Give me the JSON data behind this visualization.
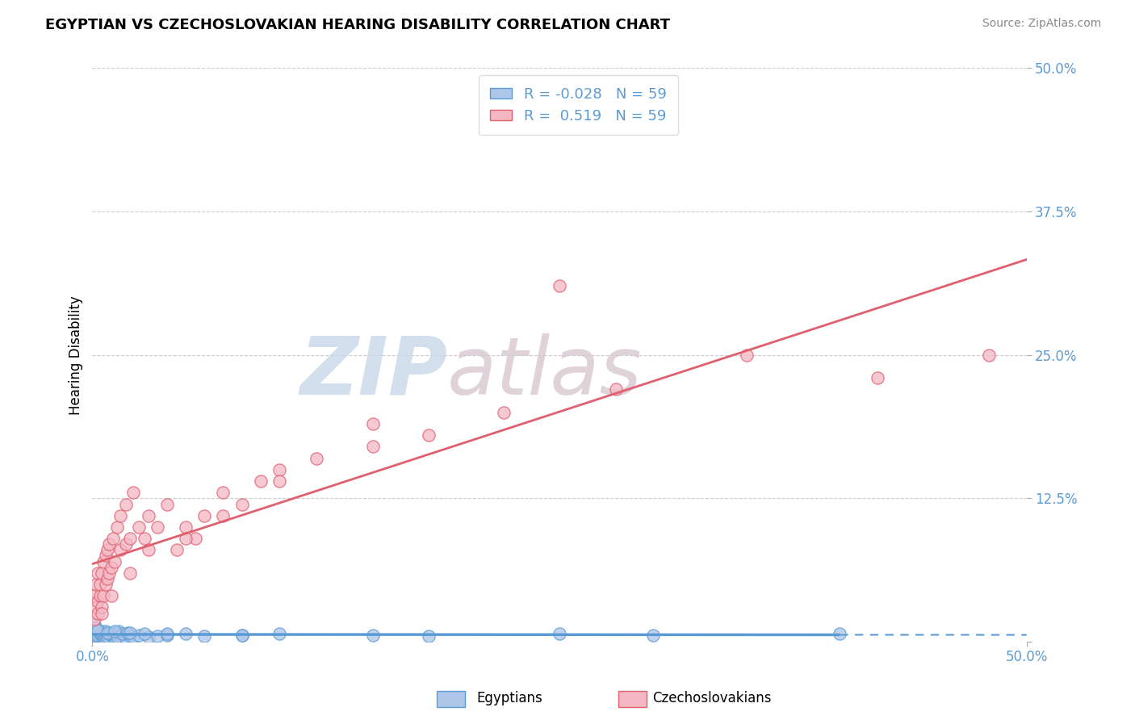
{
  "title": "EGYPTIAN VS CZECHOSLOVAKIAN HEARING DISABILITY CORRELATION CHART",
  "source": "Source: ZipAtlas.com",
  "ylabel": "Hearing Disability",
  "legend_label_egyptian": "Egyptians",
  "legend_label_czech": "Czechoslovakians",
  "R_egyptian": -0.028,
  "N_egyptian": 59,
  "R_czech": 0.519,
  "N_czech": 59,
  "xlim": [
    0.0,
    0.5
  ],
  "ylim": [
    0.0,
    0.5
  ],
  "ytick_vals": [
    0.0,
    0.125,
    0.25,
    0.375,
    0.5
  ],
  "ytick_labels": [
    "",
    "12.5%",
    "25.0%",
    "37.5%",
    "50.0%"
  ],
  "xtick_vals": [
    0.0,
    0.5
  ],
  "xtick_labels": [
    "0.0%",
    "50.0%"
  ],
  "color_egyptian_fill": "#aec6e8",
  "color_czech_fill": "#f4b8c4",
  "color_egyptian_edge": "#5b9bd5",
  "color_czech_edge": "#e06070",
  "color_blue": "#5b9bd5",
  "color_pink": "#e87088",
  "background_color": "#ffffff",
  "grid_color": "#cccccc",
  "watermark_zip": "ZIP",
  "watermark_atlas": "atlas",
  "title_fontsize": 13,
  "label_fontsize": 12,
  "legend_fontsize": 13,
  "eg_x": [
    0.001,
    0.002,
    0.001,
    0.003,
    0.002,
    0.004,
    0.003,
    0.001,
    0.002,
    0.005,
    0.004,
    0.003,
    0.006,
    0.005,
    0.007,
    0.004,
    0.006,
    0.008,
    0.003,
    0.007,
    0.005,
    0.009,
    0.006,
    0.008,
    0.01,
    0.007,
    0.012,
    0.009,
    0.015,
    0.011,
    0.013,
    0.018,
    0.014,
    0.02,
    0.016,
    0.022,
    0.019,
    0.025,
    0.03,
    0.028,
    0.035,
    0.04,
    0.05,
    0.06,
    0.08,
    0.1,
    0.15,
    0.18,
    0.25,
    0.3,
    0.001,
    0.002,
    0.003,
    0.008,
    0.012,
    0.02,
    0.04,
    0.08,
    0.4
  ],
  "eg_y": [
    0.005,
    0.003,
    0.008,
    0.004,
    0.006,
    0.003,
    0.007,
    0.01,
    0.005,
    0.004,
    0.008,
    0.006,
    0.003,
    0.009,
    0.005,
    0.007,
    0.004,
    0.006,
    0.01,
    0.003,
    0.007,
    0.005,
    0.008,
    0.004,
    0.006,
    0.009,
    0.003,
    0.007,
    0.005,
    0.008,
    0.004,
    0.003,
    0.009,
    0.005,
    0.007,
    0.004,
    0.008,
    0.006,
    0.004,
    0.007,
    0.005,
    0.006,
    0.007,
    0.005,
    0.006,
    0.007,
    0.006,
    0.005,
    0.007,
    0.006,
    0.015,
    0.012,
    0.01,
    0.008,
    0.009,
    0.008,
    0.007,
    0.006,
    0.007
  ],
  "cz_x": [
    0.001,
    0.002,
    0.001,
    0.003,
    0.002,
    0.003,
    0.004,
    0.003,
    0.005,
    0.004,
    0.006,
    0.005,
    0.007,
    0.006,
    0.008,
    0.007,
    0.009,
    0.008,
    0.01,
    0.009,
    0.012,
    0.011,
    0.015,
    0.013,
    0.018,
    0.015,
    0.02,
    0.018,
    0.025,
    0.022,
    0.03,
    0.028,
    0.035,
    0.04,
    0.045,
    0.05,
    0.055,
    0.06,
    0.07,
    0.08,
    0.09,
    0.1,
    0.12,
    0.15,
    0.18,
    0.22,
    0.28,
    0.35,
    0.42,
    0.48,
    0.005,
    0.01,
    0.02,
    0.03,
    0.05,
    0.07,
    0.1,
    0.15,
    0.25
  ],
  "cz_y": [
    0.02,
    0.03,
    0.04,
    0.025,
    0.05,
    0.035,
    0.04,
    0.06,
    0.03,
    0.05,
    0.04,
    0.06,
    0.05,
    0.07,
    0.055,
    0.075,
    0.06,
    0.08,
    0.065,
    0.085,
    0.07,
    0.09,
    0.08,
    0.1,
    0.085,
    0.11,
    0.09,
    0.12,
    0.1,
    0.13,
    0.11,
    0.09,
    0.1,
    0.12,
    0.08,
    0.1,
    0.09,
    0.11,
    0.13,
    0.12,
    0.14,
    0.15,
    0.16,
    0.17,
    0.18,
    0.2,
    0.22,
    0.25,
    0.23,
    0.25,
    0.025,
    0.04,
    0.06,
    0.08,
    0.09,
    0.11,
    0.14,
    0.19,
    0.31
  ]
}
